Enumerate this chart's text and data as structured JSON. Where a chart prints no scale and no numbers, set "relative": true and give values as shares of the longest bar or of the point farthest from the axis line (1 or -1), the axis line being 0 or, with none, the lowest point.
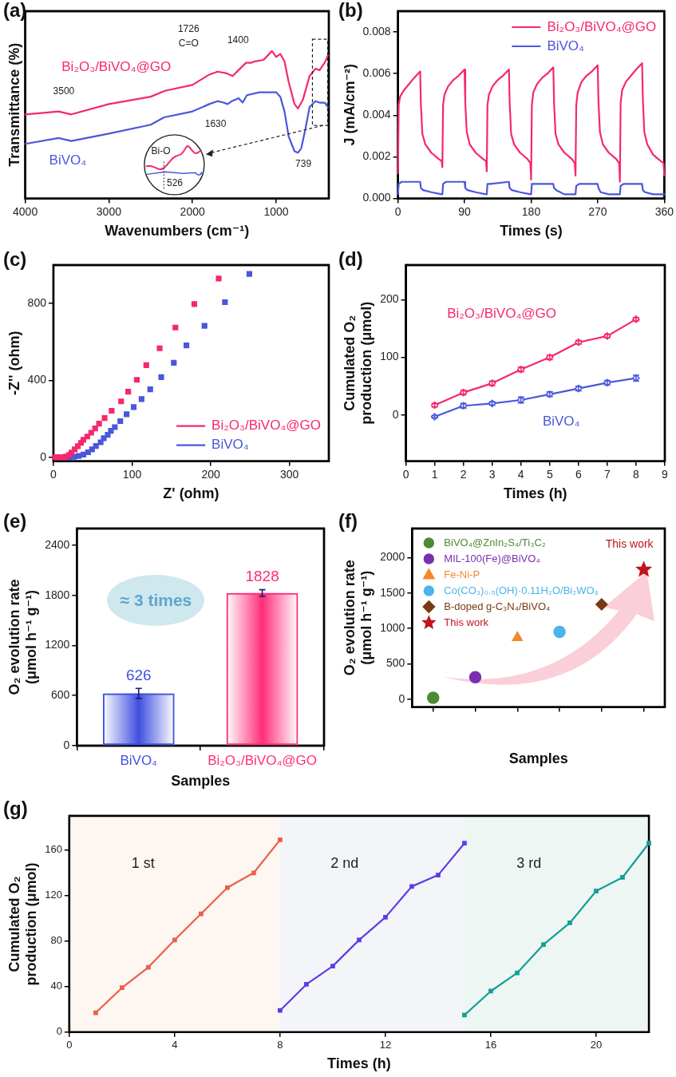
{
  "chart_data": [
    {
      "type": "line",
      "title": "(a)",
      "xlabel": "Wavenumbers (cm⁻¹)",
      "ylabel": "Transmittance (%)",
      "relative": true,
      "xlim": [
        4000,
        370
      ],
      "xticks": [
        4000,
        3000,
        2000,
        1000
      ],
      "tick_labels": "x",
      "series": [
        {
          "name": "Bi₂O₃/BiVO₄@GO",
          "color": "#f5286e",
          "x": [
            4000,
            3600,
            3450,
            3000,
            2500,
            2330,
            2000,
            1800,
            1700,
            1600,
            1520,
            1450,
            1360,
            1300,
            1250,
            1150,
            1050,
            1000,
            950,
            900,
            850,
            780,
            739,
            680,
            600,
            530,
            480,
            420,
            380
          ],
          "values": [
            0.57,
            0.59,
            0.57,
            0.64,
            0.69,
            0.73,
            0.77,
            0.84,
            0.86,
            0.85,
            0.83,
            0.87,
            0.92,
            0.92,
            0.93,
            0.94,
            1,
            0.96,
            0.98,
            0.93,
            0.79,
            0.64,
            0.61,
            0.67,
            0.83,
            0.88,
            0.87,
            0.92,
            0.97
          ]
        },
        {
          "name": "BiVO₄",
          "color": "#4a57dc",
          "x": [
            4000,
            3600,
            3450,
            3000,
            2500,
            2340,
            2000,
            1800,
            1700,
            1630,
            1580,
            1530,
            1450,
            1400,
            1350,
            1200,
            1000,
            950,
            900,
            850,
            780,
            739,
            700,
            650,
            600,
            530,
            480,
            420,
            380
          ],
          "values": [
            0.37,
            0.41,
            0.39,
            0.44,
            0.5,
            0.55,
            0.59,
            0.64,
            0.66,
            0.65,
            0.64,
            0.66,
            0.68,
            0.65,
            0.7,
            0.72,
            0.72,
            0.69,
            0.59,
            0.42,
            0.32,
            0.31,
            0.34,
            0.47,
            0.62,
            0.66,
            0.65,
            0.65,
            0.62
          ]
        }
      ],
      "annotations": [
        "3500",
        "1726",
        "C=O",
        "1400",
        "1630",
        "739",
        "Bi-O",
        "526"
      ]
    },
    {
      "type": "line",
      "title": "(b)",
      "xlabel": "Times (s)",
      "ylabel": "J (mA/cm⁻²)",
      "xlim": [
        0,
        360
      ],
      "xticks": [
        0,
        90,
        180,
        270,
        360
      ],
      "ylim": [
        0,
        0.009
      ],
      "yticks": [
        {
          "value": 0,
          "label": "0.000"
        },
        {
          "value": 0.002,
          "label": "0.002"
        },
        {
          "value": 0.004,
          "label": "0.004"
        },
        {
          "value": 0.006,
          "label": "0.006"
        },
        {
          "value": 0.008,
          "label": "0.008"
        }
      ],
      "legend": "top right",
      "series": [
        {
          "name": "Bi₂O₃/BiVO₄@GO",
          "color": "#f5286e",
          "x": [
            0,
            1,
            3,
            8,
            15,
            22,
            30,
            31,
            33,
            37,
            45,
            55,
            59,
            60,
            61,
            63,
            68,
            75,
            82,
            90,
            91,
            93,
            97,
            105,
            115,
            119,
            120,
            121,
            123,
            128,
            135,
            142,
            150,
            151,
            153,
            157,
            165,
            175,
            179,
            180,
            181,
            183,
            188,
            195,
            202,
            210,
            211,
            213,
            217,
            225,
            235,
            239,
            240,
            241,
            243,
            248,
            255,
            262,
            270,
            271,
            273,
            277,
            285,
            295,
            299,
            300,
            301,
            303,
            308,
            315,
            322,
            330,
            331,
            333,
            337,
            345,
            355,
            359,
            360
          ],
          "values": [
            0.0012,
            0.0045,
            0.0049,
            0.0052,
            0.0055,
            0.0058,
            0.0061,
            0.0045,
            0.0031,
            0.0026,
            0.0022,
            0.0019,
            0.0018,
            0.0015,
            0.0045,
            0.005,
            0.0054,
            0.0057,
            0.0059,
            0.0062,
            0.0046,
            0.0032,
            0.0026,
            0.0022,
            0.0019,
            0.0018,
            0.0013,
            0.0045,
            0.005,
            0.0054,
            0.0057,
            0.0059,
            0.0062,
            0.0046,
            0.0031,
            0.0026,
            0.0022,
            0.0019,
            0.0017,
            0.0009,
            0.0045,
            0.0051,
            0.0055,
            0.0058,
            0.006,
            0.0063,
            0.0046,
            0.0031,
            0.0026,
            0.0022,
            0.0019,
            0.0017,
            0.0011,
            0.0045,
            0.0051,
            0.0056,
            0.0059,
            0.0061,
            0.0064,
            0.0047,
            0.0032,
            0.0026,
            0.0022,
            0.0019,
            0.0017,
            0.0008,
            0.0046,
            0.0052,
            0.0056,
            0.0059,
            0.0062,
            0.0065,
            0.0048,
            0.0032,
            0.0026,
            0.0021,
            0.0018,
            0.0017,
            0.0011
          ]
        },
        {
          "name": "BiVO₄",
          "color": "#4a57dc",
          "x": [
            0,
            1,
            5,
            30,
            31,
            34,
            45,
            59,
            60,
            61,
            65,
            90,
            91,
            94,
            105,
            119,
            120,
            121,
            125,
            150,
            151,
            154,
            165,
            179,
            180,
            181,
            185,
            210,
            211,
            214,
            225,
            239,
            240,
            241,
            245,
            270,
            271,
            274,
            285,
            299,
            300,
            301,
            305,
            330,
            331,
            334,
            345,
            360
          ],
          "values": [
            0.0002,
            0.0007,
            0.0008,
            0.0008,
            0.0005,
            0.0004,
            0.0003,
            0.0002,
            0.0002,
            0.0007,
            0.0008,
            0.0008,
            0.0005,
            0.0004,
            0.0003,
            0.0002,
            0.0002,
            0.0007,
            0.0007,
            0.0008,
            0.0005,
            0.0004,
            0.0003,
            0.0002,
            0.0002,
            0.0007,
            0.0007,
            0.0007,
            0.0005,
            0.0004,
            0.0002,
            0.0002,
            0.0002,
            0.0006,
            0.0007,
            0.0007,
            0.0005,
            0.0003,
            0.0002,
            0.0002,
            0.0002,
            0.0006,
            0.0007,
            0.0007,
            0.0004,
            0.0003,
            0.0002,
            0.0002
          ]
        }
      ]
    },
    {
      "type": "scatter",
      "title": "(c)",
      "xlabel": "Z' (ohm)",
      "ylabel": "-Z'' (ohm)",
      "xlim": [
        0,
        350
      ],
      "xticks": [
        0,
        100,
        200,
        300
      ],
      "ylim": [
        -20,
        1000
      ],
      "yticks": [
        0,
        400,
        800
      ],
      "marker": "square",
      "legend": "bottom right",
      "series": [
        {
          "name": "Bi₂O₃/BiVO₄@GO",
          "color": "#f5286e",
          "x": [
            210,
            179,
            155,
            135,
            118,
            106,
            95,
            86,
            74,
            65,
            58,
            53,
            48,
            43,
            38,
            35,
            31,
            27,
            23,
            20,
            16,
            12,
            8,
            5,
            2
          ],
          "values": [
            930,
            797,
            675,
            567,
            479,
            403,
            341,
            291,
            242,
            204,
            175,
            150,
            128,
            108,
            91,
            75,
            58,
            41,
            25,
            12,
            4,
            1,
            0,
            0,
            0
          ]
        },
        {
          "name": "BiVO₄",
          "color": "#4a57dc",
          "x": [
            249,
            218,
            192,
            169,
            153,
            137,
            123,
            112,
            102,
            93,
            85,
            78,
            73,
            69,
            64,
            60,
            54,
            49,
            44,
            38,
            32,
            26,
            20,
            14
          ],
          "values": [
            954,
            807,
            684,
            582,
            492,
            417,
            354,
            303,
            261,
            224,
            188,
            157,
            138,
            117,
            99,
            78,
            59,
            41,
            26,
            14,
            7,
            3,
            0,
            0
          ]
        }
      ]
    },
    {
      "type": "line",
      "title": "(d)",
      "xlabel": "Times (h)",
      "ylabel": "Cumulated O₂ production (μmol)",
      "xlim": [
        0,
        9
      ],
      "xticks": [
        0,
        1,
        2,
        3,
        4,
        5,
        6,
        7,
        8,
        9
      ],
      "ylim": [
        -80,
        260
      ],
      "yticks": [
        0,
        100,
        200
      ],
      "marker": "diamond",
      "series": [
        {
          "name": "Bi₂O₃/BiVO₄@GO",
          "color": "#f5286e",
          "x": [
            1,
            2,
            3,
            4,
            5,
            6,
            7,
            8
          ],
          "values": [
            17,
            39,
            55,
            79,
            100,
            126,
            137,
            166
          ],
          "errors": [
            3,
            4,
            4,
            4,
            4,
            3,
            3,
            3
          ]
        },
        {
          "name": "BiVO₄",
          "color": "#4a57dc",
          "x": [
            1,
            2,
            3,
            4,
            5,
            6,
            7,
            8
          ],
          "values": [
            -3,
            16,
            20,
            26,
            36,
            46,
            56,
            64
          ],
          "errors": [
            2,
            4,
            3,
            5,
            4,
            4,
            4,
            5
          ]
        }
      ]
    },
    {
      "type": "bar",
      "title": "(e)",
      "xlabel": "Samples",
      "ylabel": "O₂ evolution rate (μmol h⁻¹ g⁻¹)",
      "categories": [
        "BiVO₄",
        "Bi₂O₃/BiVO₄@GO"
      ],
      "values": [
        626,
        1828
      ],
      "colors": [
        "#3f4fe0",
        "#ff2d78"
      ],
      "errors": [
        60,
        40
      ],
      "data_labels": true,
      "ylim": [
        0,
        2600
      ],
      "yticks": [
        0,
        600,
        1200,
        1800,
        2400
      ],
      "annotations": [
        "≈ 3 times"
      ]
    },
    {
      "type": "scatter",
      "title": "(f)",
      "xlabel": "Samples",
      "ylabel": "O₂ evolution rate (μmol h⁻¹ g⁻¹)",
      "categories": [
        null,
        null,
        null,
        null,
        null,
        null
      ],
      "ylim": [
        -110,
        2410
      ],
      "yticks": [
        0,
        500,
        1000,
        1500,
        2000
      ],
      "legend": "top left",
      "series": [
        {
          "name": "BiVO₄@ZnIn₂S₄/Ti₃C₂",
          "color": "#4e8a34",
          "marker": "circle",
          "values": [
            20,
            null,
            null,
            null,
            null,
            null
          ]
        },
        {
          "name": "MIL-100(Fe)@BiVO₄",
          "color": "#7a2fb0",
          "marker": "circle",
          "values": [
            null,
            310,
            null,
            null,
            null,
            null
          ]
        },
        {
          "name": "Fe-Ni-P",
          "color": "#f08a2c",
          "marker": "triangle",
          "values": [
            null,
            null,
            870,
            null,
            null,
            null
          ]
        },
        {
          "name": "Co(CO₃)₀.₅(OH)·0.11H₂O/Bi₂WO₆",
          "color": "#4ab4ec",
          "marker": "circle",
          "values": [
            null,
            null,
            null,
            950,
            null,
            null
          ]
        },
        {
          "name": "B-doped g-C₃N₄/BiVO₄",
          "color": "#7a3a12",
          "marker": "diamond",
          "values": [
            null,
            null,
            null,
            null,
            1340,
            null
          ]
        },
        {
          "name": "This work",
          "color": "#c0141c",
          "marker": "star",
          "values": [
            null,
            null,
            null,
            null,
            null,
            1830
          ]
        }
      ],
      "annotations": [
        "This work"
      ]
    },
    {
      "type": "line",
      "xlabel": "Times (h)",
      "ylabel": "Cumulated O₂ production (μmol)",
      "title": "(g)",
      "xlim": [
        0,
        22
      ],
      "xticks": [
        0,
        4,
        8,
        12,
        16,
        20
      ],
      "ylim": [
        0,
        190
      ],
      "yticks": [
        0,
        40,
        80,
        120,
        160
      ],
      "marker": "square",
      "bands": [
        {
          "axis": "x",
          "from": 0,
          "to": 8,
          "label": "1 st",
          "color": "#fdf6f1"
        },
        {
          "axis": "x",
          "from": 8,
          "to": 15,
          "label": "2 nd",
          "color": "#f3f5f9"
        },
        {
          "axis": "x",
          "from": 15,
          "to": 22,
          "label": "3 rd",
          "color": "#eef6f4"
        }
      ],
      "series": [
        {
          "color": "#e8604c",
          "x": [
            1,
            2,
            3,
            4,
            5,
            6,
            7,
            8
          ],
          "values": [
            17,
            39,
            57,
            81,
            104,
            127,
            140,
            169
          ]
        },
        {
          "color": "#5a3fe0",
          "x": [
            8,
            9,
            10,
            11,
            12,
            13,
            14,
            15
          ],
          "values": [
            19,
            42,
            58,
            81,
            101,
            128,
            138,
            166
          ]
        },
        {
          "color": "#159e96",
          "x": [
            15,
            16,
            17,
            18,
            19,
            20,
            21,
            22
          ],
          "values": [
            15,
            36,
            52,
            77,
            96,
            124,
            136,
            166
          ]
        }
      ]
    }
  ]
}
